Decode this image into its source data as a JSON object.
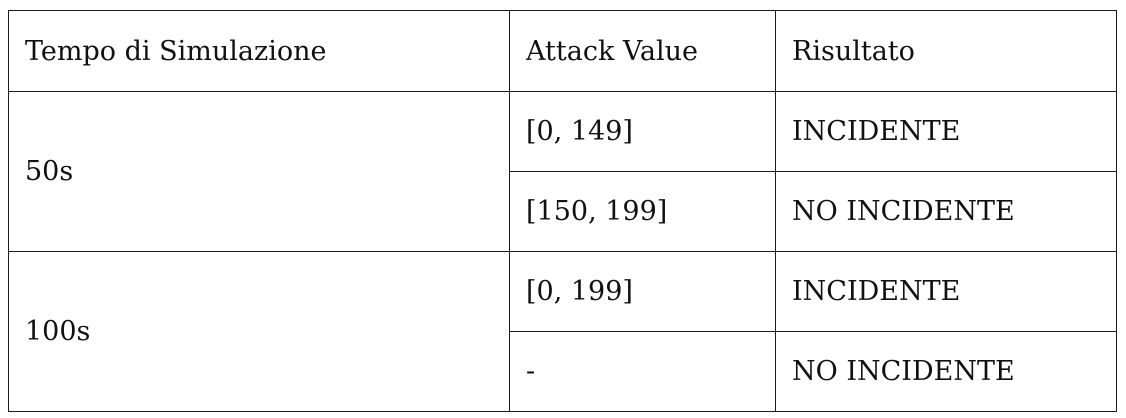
{
  "table": {
    "headers": [
      "Tempo di Simulazione",
      "Attack Value",
      "Risultato"
    ],
    "groups": [
      {
        "time": "50s",
        "rows": [
          {
            "attack_value": "[0, 149]",
            "result": "INCIDENTE"
          },
          {
            "attack_value": "[150, 199]",
            "result": "NO INCIDENTE"
          }
        ]
      },
      {
        "time": "100s",
        "rows": [
          {
            "attack_value": "[0, 199]",
            "result": "INCIDENTE"
          },
          {
            "attack_value": "-",
            "result": "NO INCIDENTE"
          }
        ]
      }
    ]
  }
}
